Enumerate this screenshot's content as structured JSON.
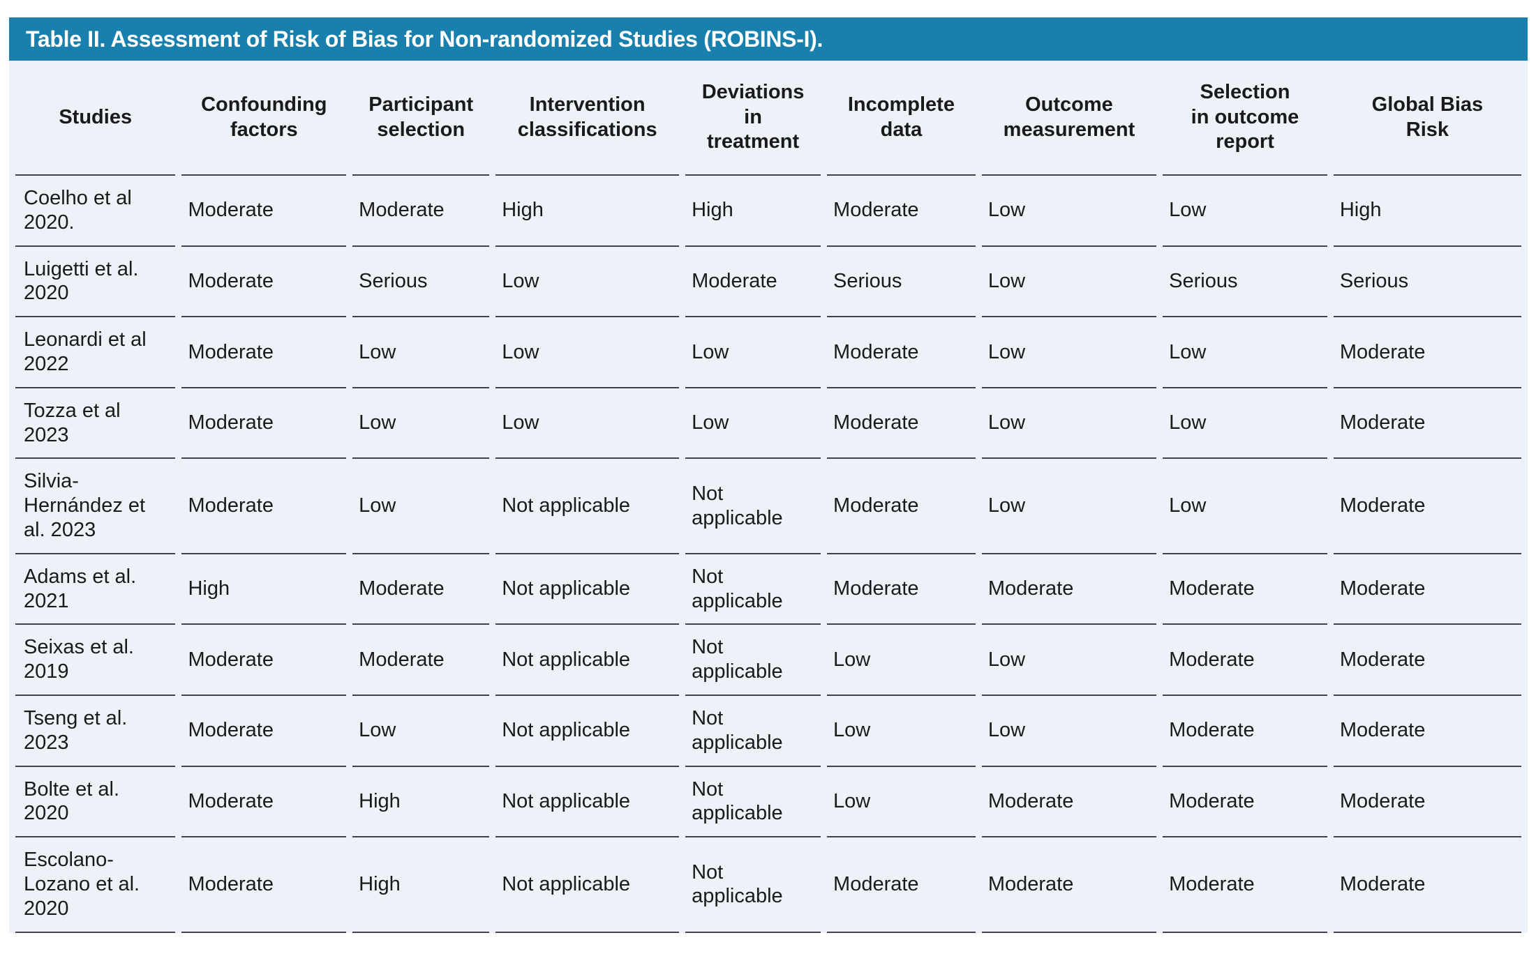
{
  "table": {
    "title": "Table II. Assessment of Risk of Bias for Non-randomized Studies (ROBINS-I).",
    "columns": [
      "Studies",
      "Confounding\nfactors",
      "Participant\nselection",
      "Intervention\nclassifications",
      "Deviations\nin\ntreatment",
      "Incomplete\ndata",
      "Outcome\nmeasurement",
      "Selection\nin outcome\nreport",
      "Global Bias\nRisk"
    ],
    "rows": [
      {
        "study": "Coelho et al\n2020.",
        "values": [
          "Moderate",
          "Moderate",
          "High",
          "High",
          "Moderate",
          "Low",
          "Low",
          "High"
        ]
      },
      {
        "study": "Luigetti et al.\n2020",
        "values": [
          "Moderate",
          "Serious",
          "Low",
          "Moderate",
          "Serious",
          "Low",
          "Serious",
          "Serious"
        ]
      },
      {
        "study": "Leonardi et al\n2022",
        "values": [
          "Moderate",
          "Low",
          "Low",
          "Low",
          "Moderate",
          "Low",
          "Low",
          "Moderate"
        ]
      },
      {
        "study": "Tozza et al\n2023",
        "values": [
          "Moderate",
          "Low",
          "Low",
          "Low",
          "Moderate",
          "Low",
          "Low",
          "Moderate"
        ]
      },
      {
        "study": "Silvia-\nHernández et\nal. 2023",
        "values": [
          "Moderate",
          "Low",
          "Not applicable",
          "Not\napplicable",
          "Moderate",
          "Low",
          "Low",
          "Moderate"
        ]
      },
      {
        "study": "Adams et al.\n2021",
        "values": [
          "High",
          "Moderate",
          "Not applicable",
          "Not\napplicable",
          "Moderate",
          "Moderate",
          "Moderate",
          "Moderate"
        ]
      },
      {
        "study": "Seixas et al.\n2019",
        "values": [
          "Moderate",
          "Moderate",
          "Not applicable",
          "Not\napplicable",
          "Low",
          "Low",
          "Moderate",
          "Moderate"
        ]
      },
      {
        "study": "Tseng et al.\n2023",
        "values": [
          "Moderate",
          "Low",
          "Not applicable",
          "Not\napplicable",
          "Low",
          "Low",
          "Moderate",
          "Moderate"
        ]
      },
      {
        "study": "Bolte et al.\n2020",
        "values": [
          "Moderate",
          "High",
          "Not applicable",
          "Not\napplicable",
          "Low",
          "Moderate",
          "Moderate",
          "Moderate"
        ]
      },
      {
        "study": "Escolano-\nLozano et al.\n2020",
        "values": [
          "Moderate",
          "High",
          "Not applicable",
          "Not\napplicable",
          "Moderate",
          "Moderate",
          "Moderate",
          "Moderate"
        ]
      }
    ],
    "risk_levels_used": [
      "Low",
      "Moderate",
      "High",
      "Serious",
      "Not applicable"
    ],
    "colors": {
      "title_bar_bg": "#1980AE",
      "table_bg": "#EDF1F8",
      "border": "#3E424A",
      "text": "#1A1A1A",
      "title_text": "#FFFFFF"
    }
  }
}
